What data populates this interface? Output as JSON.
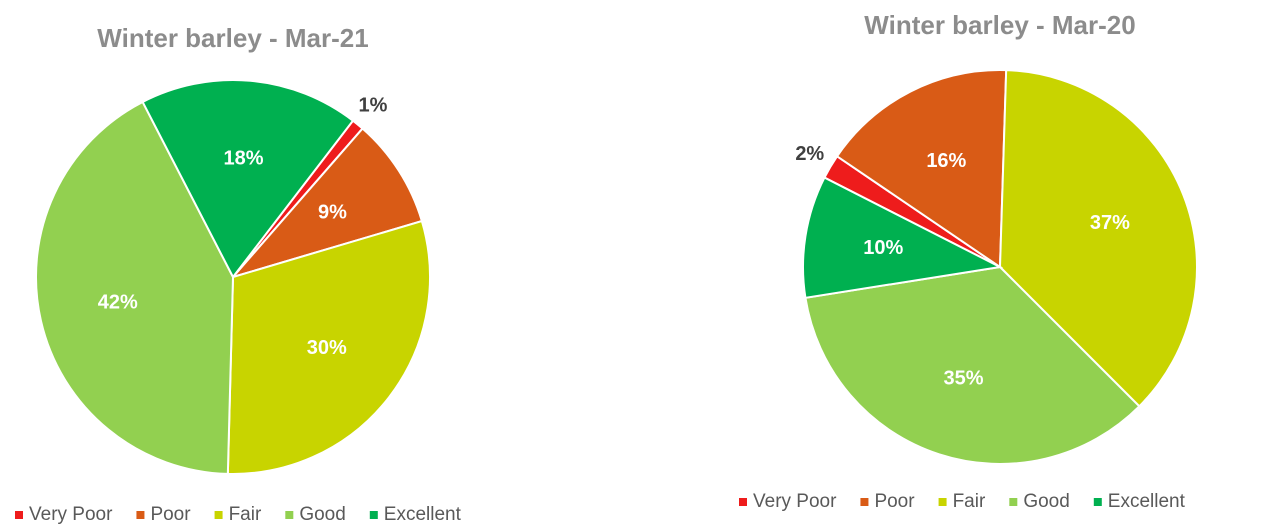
{
  "chart_data": [
    {
      "type": "pie",
      "title": "Winter barley - Mar-21",
      "categories": [
        "Very Poor",
        "Poor",
        "Fair",
        "Good",
        "Excellent"
      ],
      "values": [
        1,
        9,
        30,
        42,
        18
      ],
      "value_labels": [
        "1%",
        "9%",
        "30%",
        "42%",
        "18%"
      ],
      "colors": [
        "#ee1c1c",
        "#d95b16",
        "#c8d400",
        "#92d050",
        "#00b050"
      ]
    },
    {
      "type": "pie",
      "title": "Winter barley - Mar-20",
      "categories": [
        "Very Poor",
        "Poor",
        "Fair",
        "Good",
        "Excellent"
      ],
      "values": [
        2,
        16,
        37,
        35,
        10
      ],
      "value_labels": [
        "2%",
        "16%",
        "37%",
        "35%",
        "10%"
      ],
      "colors": [
        "#ee1c1c",
        "#d95b16",
        "#c8d400",
        "#92d050",
        "#00b050"
      ]
    }
  ]
}
